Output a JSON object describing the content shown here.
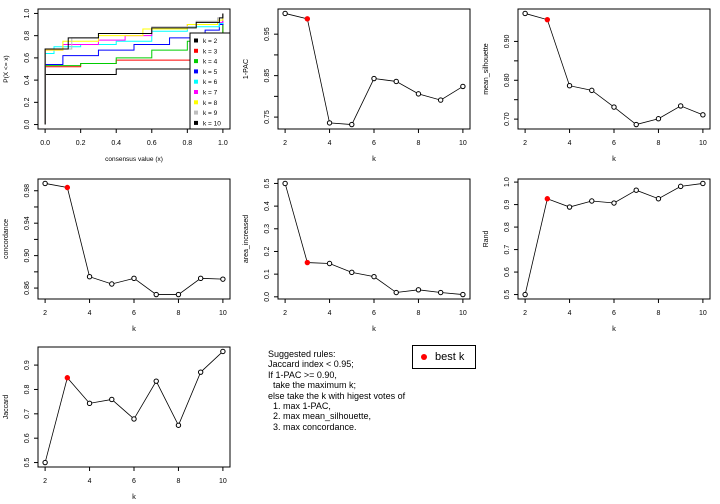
{
  "chart_data": [
    {
      "type": "line",
      "title": "",
      "xlabel": "consensus value (x)",
      "ylabel": "P(X <= x)",
      "xlim": [
        0,
        1
      ],
      "ylim": [
        0,
        1
      ],
      "xticks": [
        "0.0",
        "0.2",
        "0.4",
        "0.6",
        "0.8",
        "1.0"
      ],
      "yticks": [
        "0.0",
        "0.2",
        "0.4",
        "0.6",
        "0.8",
        "1.0"
      ],
      "legend_position": "right",
      "series": [
        {
          "name": "k = 2",
          "color": "#000000",
          "x": [
            0,
            0,
            0.4,
            0.85,
            1,
            1
          ],
          "y": [
            0,
            0.45,
            0.5,
            0.53,
            0.54,
            1
          ]
        },
        {
          "name": "k = 3",
          "color": "#ff0000",
          "x": [
            0,
            0,
            0.2,
            0.4,
            0.9,
            1,
            1
          ],
          "y": [
            0,
            0.52,
            0.55,
            0.58,
            0.6,
            0.62,
            1
          ]
        },
        {
          "name": "k = 4",
          "color": "#00cd00",
          "x": [
            0,
            0,
            0.2,
            0.4,
            0.6,
            0.8,
            0.95,
            1,
            1
          ],
          "y": [
            0,
            0.53,
            0.55,
            0.6,
            0.67,
            0.75,
            0.78,
            0.8,
            1
          ]
        },
        {
          "name": "k = 5",
          "color": "#0000ff",
          "x": [
            0,
            0,
            0.1,
            0.3,
            0.5,
            0.7,
            0.9,
            0.98,
            1
          ],
          "y": [
            0,
            0.54,
            0.62,
            0.67,
            0.72,
            0.78,
            0.85,
            0.9,
            1
          ]
        },
        {
          "name": "k = 6",
          "color": "#00ffff",
          "x": [
            0,
            0,
            0.05,
            0.2,
            0.4,
            0.6,
            0.8,
            0.98,
            1
          ],
          "y": [
            0,
            0.64,
            0.7,
            0.72,
            0.75,
            0.84,
            0.88,
            0.91,
            1
          ]
        },
        {
          "name": "k = 7",
          "color": "#ff00ff",
          "x": [
            0,
            0,
            0.1,
            0.3,
            0.45,
            0.6,
            0.8,
            0.97,
            1
          ],
          "y": [
            0,
            0.67,
            0.72,
            0.76,
            0.8,
            0.86,
            0.9,
            0.92,
            1
          ]
        },
        {
          "name": "k = 8",
          "color": "#ffff00",
          "x": [
            0,
            0,
            0.1,
            0.3,
            0.55,
            0.8,
            0.97,
            1
          ],
          "y": [
            0,
            0.67,
            0.75,
            0.8,
            0.86,
            0.9,
            0.94,
            1
          ]
        },
        {
          "name": "k = 9",
          "color": "#bebebe",
          "x": [
            0,
            0,
            0.15,
            0.3,
            0.6,
            0.85,
            0.97,
            1
          ],
          "y": [
            0,
            0.68,
            0.78,
            0.82,
            0.88,
            0.93,
            0.96,
            1
          ]
        },
        {
          "name": "k = 10",
          "color": "#000000",
          "x": [
            0,
            0,
            0.13,
            0.3,
            0.6,
            0.85,
            0.98,
            1
          ],
          "y": [
            0,
            0.68,
            0.78,
            0.82,
            0.87,
            0.92,
            0.96,
            1
          ]
        }
      ]
    },
    {
      "type": "line",
      "xlabel": "k",
      "ylabel": "1-PAC",
      "x": [
        2,
        3,
        4,
        5,
        6,
        7,
        8,
        9,
        10
      ],
      "values": [
        1.0,
        0.987,
        0.736,
        0.732,
        0.843,
        0.836,
        0.806,
        0.791,
        0.824
      ],
      "yticks": [
        0.75,
        0.8,
        0.85,
        0.9,
        0.95
      ],
      "ytick_labels": [
        "0.75",
        "",
        "0.85",
        "",
        "0.95"
      ],
      "best_k": 3
    },
    {
      "type": "line",
      "xlabel": "k",
      "ylabel": "mean_silhouette",
      "x": [
        2,
        3,
        4,
        5,
        6,
        7,
        8,
        9,
        10
      ],
      "values": [
        0.972,
        0.956,
        0.786,
        0.774,
        0.731,
        0.686,
        0.701,
        0.734,
        0.711
      ],
      "yticks": [
        0.7,
        0.75,
        0.8,
        0.85,
        0.9
      ],
      "ytick_labels": [
        "0.70",
        "",
        "0.80",
        "",
        "0.90"
      ],
      "best_k": 3
    },
    {
      "type": "line",
      "xlabel": "k",
      "ylabel": "concordance",
      "x": [
        2,
        3,
        4,
        5,
        6,
        7,
        8,
        9,
        10
      ],
      "values": [
        0.989,
        0.984,
        0.874,
        0.865,
        0.872,
        0.852,
        0.852,
        0.872,
        0.871
      ],
      "yticks": [
        0.86,
        0.88,
        0.9,
        0.92,
        0.94,
        0.96,
        0.98
      ],
      "ytick_labels": [
        "0.86",
        "",
        "0.90",
        "",
        "0.94",
        "",
        "0.98"
      ],
      "best_k": 3
    },
    {
      "type": "line",
      "xlabel": "k",
      "ylabel": "area_increased",
      "x": [
        2,
        3,
        4,
        5,
        6,
        7,
        8,
        9,
        10
      ],
      "values": [
        0.5,
        0.151,
        0.147,
        0.108,
        0.089,
        0.019,
        0.031,
        0.019,
        0.01
      ],
      "yticks": [
        0,
        0.1,
        0.2,
        0.3,
        0.4,
        0.5
      ],
      "ytick_labels": [
        "0.0",
        "0.1",
        "0.2",
        "0.3",
        "0.4",
        "0.5"
      ],
      "best_k": 3
    },
    {
      "type": "line",
      "xlabel": "k",
      "ylabel": "Rand",
      "x": [
        2,
        3,
        4,
        5,
        6,
        7,
        8,
        9,
        10
      ],
      "values": [
        0.5,
        0.926,
        0.889,
        0.916,
        0.907,
        0.964,
        0.926,
        0.981,
        0.994
      ],
      "yticks": [
        0.5,
        0.6,
        0.7,
        0.8,
        0.9,
        1.0
      ],
      "ytick_labels": [
        "0.5",
        "0.6",
        "0.7",
        "0.8",
        "0.9",
        "1.0"
      ],
      "best_k": 3
    },
    {
      "type": "line",
      "xlabel": "k",
      "ylabel": "Jaccard",
      "x": [
        2,
        3,
        4,
        5,
        6,
        7,
        8,
        9,
        10
      ],
      "values": [
        0.5,
        0.848,
        0.743,
        0.759,
        0.679,
        0.834,
        0.653,
        0.871,
        0.956
      ],
      "yticks": [
        0.5,
        0.6,
        0.7,
        0.8,
        0.9
      ],
      "ytick_labels": [
        "0.5",
        "0.6",
        "0.7",
        "0.8",
        "0.9"
      ],
      "best_k": 3
    }
  ],
  "xticks_k": [
    "2",
    "4",
    "6",
    "8",
    "10"
  ],
  "best_color": "#ff0000",
  "rules": {
    "lines": [
      "Suggested rules:",
      "Jaccard index < 0.95;",
      "If 1-PAC >= 0.90,",
      "  take the maximum k;",
      "else take the k with higest votes of",
      "  1. max 1-PAC,",
      "  2. max mean_silhouette,",
      "  3. max concordance."
    ]
  },
  "legend_best": "best k"
}
